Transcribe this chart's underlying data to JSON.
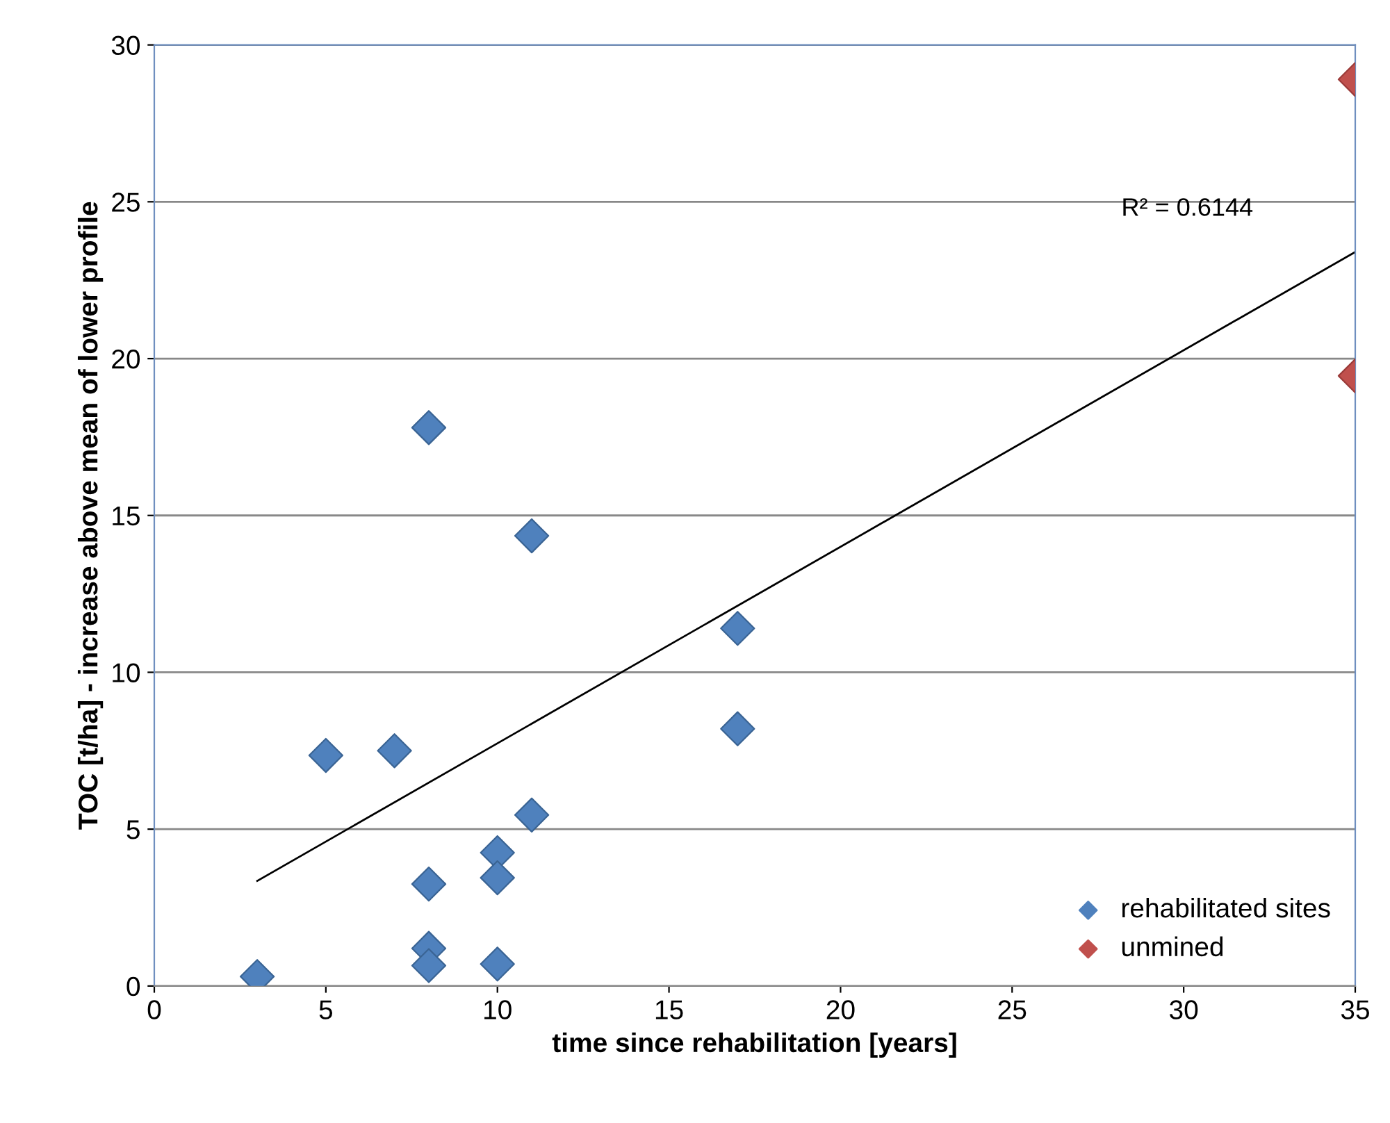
{
  "chart_data": {
    "type": "scatter",
    "xlabel": "time since rehabilitation [years]",
    "ylabel": "TOC [t/ha] - increase above mean of lower profile",
    "series": [
      {
        "name": "rehabilitated sites",
        "color": "#4f81bd",
        "x": [
          3,
          5,
          7,
          8,
          8,
          8,
          8,
          10,
          10,
          10,
          11,
          11,
          17,
          17
        ],
        "values": [
          0.3,
          7.35,
          7.5,
          17.8,
          3.25,
          1.2,
          0.65,
          4.25,
          3.45,
          0.7,
          14.35,
          5.45,
          11.4,
          8.2
        ]
      },
      {
        "name": "unmined",
        "color": "#c0504d",
        "x": [
          35,
          35
        ],
        "values": [
          28.9,
          19.45
        ]
      },
      {
        "type": "line",
        "color": "#000000",
        "x": [
          3,
          35
        ],
        "values": [
          3.35,
          23.4
        ],
        "marker": "none"
      }
    ],
    "annotations": [
      "R² = 0.6144"
    ],
    "xlim": [
      0,
      35
    ],
    "xticks": [
      0,
      5,
      10,
      15,
      20,
      25,
      30,
      35
    ],
    "ylim": [
      0,
      30
    ],
    "yticks": [
      0,
      5,
      10,
      15,
      20,
      25,
      30
    ],
    "grid": "y",
    "legend": "bottom right",
    "marker": "diamond"
  }
}
